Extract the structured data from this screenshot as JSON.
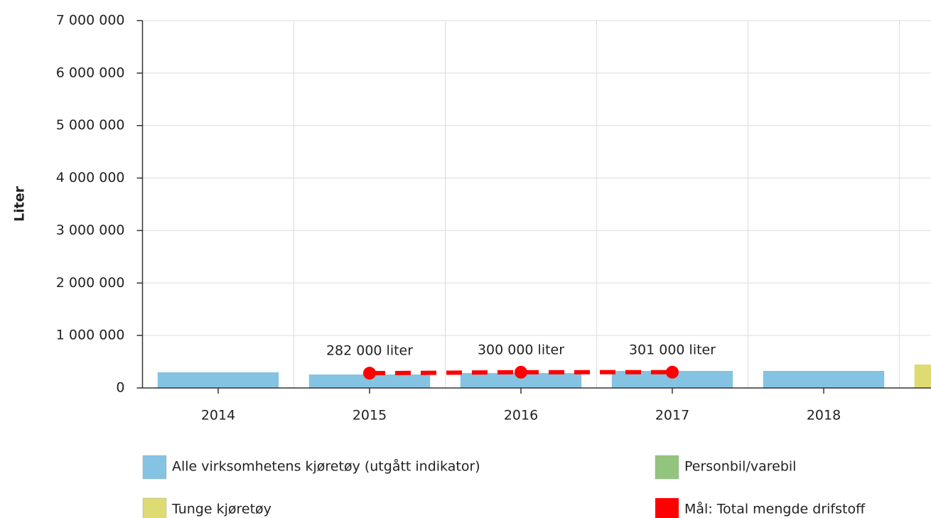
{
  "chart_data": {
    "type": "bar",
    "y_label": "Liter",
    "categories": [
      "2014",
      "2015",
      "2016",
      "2017",
      "2018",
      null
    ],
    "ylim": [
      0,
      7000000
    ],
    "yticks": [
      {
        "value": 0,
        "label": "0"
      },
      {
        "value": 1000000,
        "label": "1 000 000"
      },
      {
        "value": 2000000,
        "label": "2 000 000"
      },
      {
        "value": 3000000,
        "label": "3 000 000"
      },
      {
        "value": 4000000,
        "label": "4 000 000"
      },
      {
        "value": 5000000,
        "label": "5 000 000"
      },
      {
        "value": 6000000,
        "label": "6 000 000"
      },
      {
        "value": 7000000,
        "label": "7 000 000"
      }
    ],
    "grid": true,
    "series": [
      {
        "name": "Alle virksomhetens kjøretøy (utgått indikator)",
        "type": "bar",
        "color": "#85c3e2",
        "values": [
          298000,
          257000,
          284000,
          325000,
          325000,
          null
        ]
      },
      {
        "name": "Personbil/varebil",
        "type": "bar",
        "color": "#93c47d",
        "values": [
          null,
          null,
          null,
          null,
          null,
          null
        ]
      },
      {
        "name": "Tunge kjøretøy",
        "type": "bar",
        "color": "#dedb72",
        "values": [
          null,
          null,
          null,
          null,
          null,
          447000
        ]
      },
      {
        "name": "Mål: Total mengde drifstoff",
        "type": "line",
        "color": "#ff0000",
        "values": [
          null,
          282000,
          300000,
          301000,
          null,
          null
        ],
        "value_labels": [
          null,
          "282 000 liter",
          "300 000 liter",
          "301 000 liter",
          null,
          null
        ]
      }
    ]
  }
}
